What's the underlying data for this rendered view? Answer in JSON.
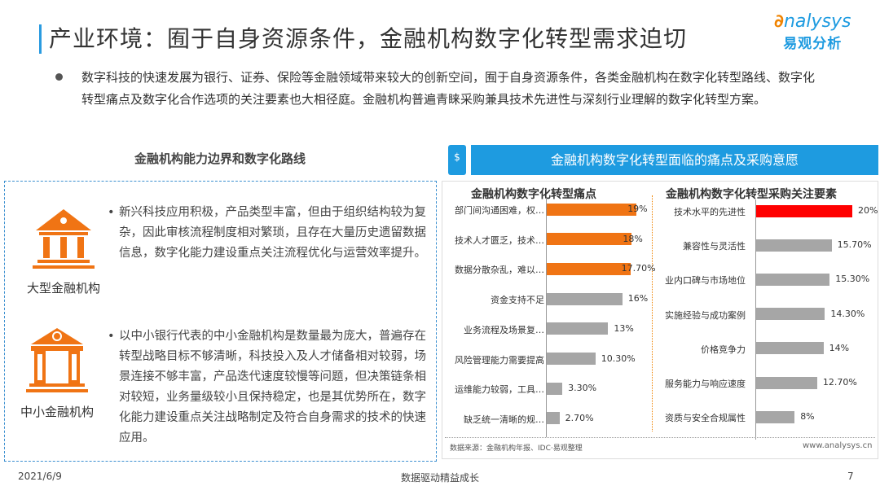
{
  "header": {
    "title": "产业环境：囿于自身资源条件，金融机构数字化转型需求迫切",
    "logo_en": "nalysys",
    "logo_cn": "易观分析"
  },
  "intro": "数字科技的快速发展为银行、证券、保险等金融领域带来较大的创新空间，囿于自身资源条件，各类金融机构在数字化转型路线、数字化转型痛点及数字化合作选项的关注要素也大相径庭。金融机构普遍青睐采购兼具技术先进性与深刻行业理解的数字化转型方案。",
  "left": {
    "heading": "金融机构能力边界和数字化路线",
    "items": [
      {
        "name": "大型金融机构",
        "icon": "bank-building-icon",
        "text": "新兴科技应用积极，产品类型丰富，但由于组织结构较为复杂，因此审核流程制度相对繁琐，且存在大量历史遗留数据信息，数字化能力建设重点关注流程优化与运营效率提升。"
      },
      {
        "name": "中小金融机构",
        "icon": "small-bank-icon",
        "text": "以中小银行代表的中小金融机构是数量最为庞大，普遍存在转型战略目标不够清晰，科技投入及人才储备相对较弱，场景连接不够丰富，产品迭代速度较慢等问题，但决策链条相对较短，业务量级较小且保持稳定，也是其优势所在，数字化能力建设重点关注战略制定及符合自身需求的技术的快速应用。"
      }
    ],
    "bullet": "•"
  },
  "right": {
    "header": "金融机构数字化转型面临的痛点及采购意愿",
    "icon": "dollar-icon",
    "source": "数据来源：金融机构年报、IDC·易观整理",
    "site": "www.analysys.cn"
  },
  "colors": {
    "accent": "#1e9be0",
    "orange": "#f07414",
    "red": "#ff0000",
    "gray": "#a6a6a6"
  },
  "chart_data": [
    {
      "type": "bar",
      "orientation": "horizontal",
      "title": "金融机构数字化转型痛点",
      "categories": [
        "部门间沟通困难，权…",
        "技术人才匮乏，技术…",
        "数据分散杂乱，难以…",
        "资金支持不足",
        "业务流程及场景复…",
        "风险管理能力需要提高",
        "运维能力较弱，工具…",
        "缺乏统一清晰的规…"
      ],
      "values": [
        19,
        18,
        17.7,
        16,
        13,
        10.3,
        3.3,
        2.7
      ],
      "labels": [
        "19%",
        "18%",
        "17.70%",
        "16%",
        "13%",
        "10.30%",
        "3.30%",
        "2.70%"
      ],
      "highlight": [
        0,
        1,
        2
      ]
    },
    {
      "type": "bar",
      "orientation": "horizontal",
      "title": "金融机构数字化转型采购关注要素",
      "categories": [
        "技术水平的先进性",
        "兼容性与灵活性",
        "业内口碑与市场地位",
        "实施经验与成功案例",
        "价格竞争力",
        "服务能力与响应速度",
        "资质与安全合规属性"
      ],
      "values": [
        20,
        15.7,
        15.3,
        14.3,
        14,
        12.7,
        8
      ],
      "labels": [
        "20%",
        "15.70%",
        "15.30%",
        "14.30%",
        "14%",
        "12.70%",
        "8%"
      ],
      "highlight": [
        0
      ]
    }
  ],
  "footer": {
    "date": "2021/6/9",
    "slogan": "数据驱动精益成长",
    "page": "7"
  }
}
